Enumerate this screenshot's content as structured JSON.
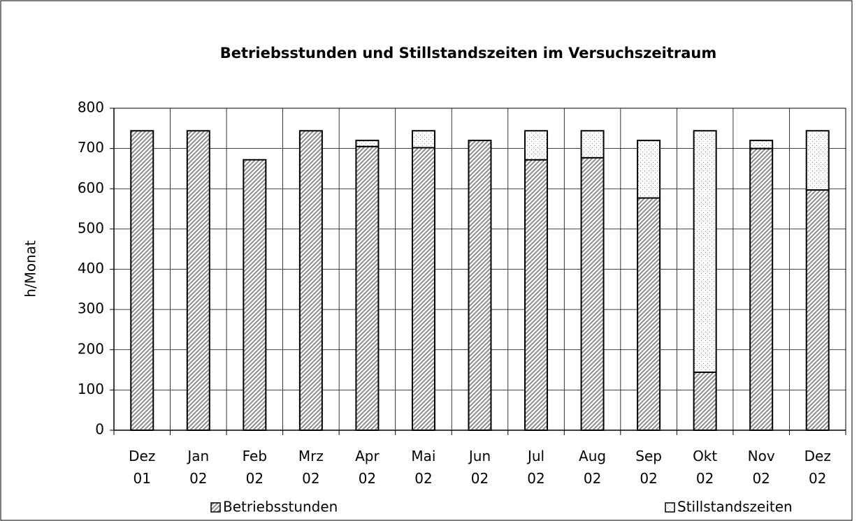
{
  "chart_data": {
    "type": "stacked_bar",
    "title": "Betriebsstunden und Stillstandszeiten im Versuchszeitraum",
    "y_label": "h/Monat",
    "categories": [
      "Dez 01",
      "Jan 02",
      "Feb 02",
      "Mrz 02",
      "Apr 02",
      "Mai 02",
      "Jun 02",
      "Jul 02",
      "Aug 02",
      "Sep 02",
      "Okt 02",
      "Nov 02",
      "Dez 02"
    ],
    "series": [
      {
        "name": "Betriebsstunden",
        "color": "#8c8c8c",
        "pattern": "hatch",
        "values": [
          744,
          744,
          672,
          744,
          705,
          702,
          720,
          672,
          677,
          577,
          144,
          700,
          597
        ]
      },
      {
        "name": "Stillstandszeiten",
        "color": "#8c8c8c",
        "pattern": "dots",
        "values": [
          0,
          0,
          0,
          0,
          15,
          42,
          0,
          72,
          67,
          143,
          600,
          20,
          147
        ]
      }
    ],
    "ylim": [
      0,
      800
    ],
    "yticks": [
      0,
      100,
      200,
      300,
      400,
      500,
      600,
      700,
      800
    ],
    "grid": true,
    "legend": "bottom"
  }
}
